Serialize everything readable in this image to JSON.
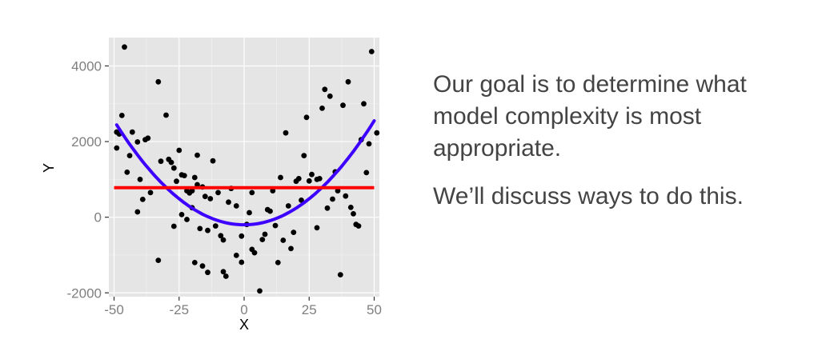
{
  "caption": {
    "para1": "Our goal is to determine what model complexity is most appropriate.",
    "para2": "We’ll discuss ways to do this."
  },
  "chart_data": {
    "type": "scatter",
    "title": "",
    "xlabel": "X",
    "ylabel": "Y",
    "xlim": [
      -52,
      52
    ],
    "ylim": [
      -2100,
      4750
    ],
    "xticks": [
      -50,
      -25,
      0,
      25,
      50
    ],
    "xtick_labels": [
      "-50",
      "-25",
      "0",
      "25",
      "50"
    ],
    "yticks": [
      -2000,
      0,
      2000,
      4000
    ],
    "ytick_labels": [
      "-2000",
      "0",
      "2000",
      "4000"
    ],
    "grid": true,
    "background": "#e5e5e5",
    "points": [
      [
        -46,
        4500
      ],
      [
        -33,
        3580
      ],
      [
        -30,
        2700
      ],
      [
        -48,
        2200
      ],
      [
        -47,
        2690
      ],
      [
        -49,
        2250
      ],
      [
        -43,
        2250
      ],
      [
        -41,
        1990
      ],
      [
        -38,
        2050
      ],
      [
        -37,
        2090
      ],
      [
        -44,
        1630
      ],
      [
        -49,
        1830
      ],
      [
        -45,
        1190
      ],
      [
        -40,
        1000
      ],
      [
        -36,
        650
      ],
      [
        -39,
        470
      ],
      [
        -41,
        140
      ],
      [
        -32,
        1480
      ],
      [
        -28,
        1450
      ],
      [
        -29,
        1530
      ],
      [
        -27,
        1300
      ],
      [
        -25,
        1770
      ],
      [
        -23,
        1100
      ],
      [
        -24,
        1120
      ],
      [
        -22,
        700
      ],
      [
        -21,
        640
      ],
      [
        -20,
        700
      ],
      [
        -19,
        1050
      ],
      [
        -18,
        1640
      ],
      [
        -26,
        950
      ],
      [
        -13,
        490
      ],
      [
        -12,
        1490
      ],
      [
        -10,
        650
      ],
      [
        -15,
        550
      ],
      [
        -16,
        800
      ],
      [
        -18,
        860
      ],
      [
        -27,
        -240
      ],
      [
        -24,
        70
      ],
      [
        -22,
        -60
      ],
      [
        -20,
        250
      ],
      [
        -17,
        -300
      ],
      [
        -14,
        -350
      ],
      [
        -11,
        -230
      ],
      [
        -9,
        -490
      ],
      [
        -8,
        -600
      ],
      [
        -6,
        400
      ],
      [
        -5,
        760
      ],
      [
        -3,
        300
      ],
      [
        -1,
        -500
      ],
      [
        1,
        -190
      ],
      [
        2,
        120
      ],
      [
        3,
        650
      ],
      [
        -33,
        -1140
      ],
      [
        -19,
        -1200
      ],
      [
        -16,
        -1290
      ],
      [
        -14,
        -1460
      ],
      [
        -8,
        -1440
      ],
      [
        -7,
        -1560
      ],
      [
        -3,
        -1010
      ],
      [
        -1,
        -1190
      ],
      [
        3,
        -850
      ],
      [
        4,
        -940
      ],
      [
        6,
        -1950
      ],
      [
        7,
        -590
      ],
      [
        8,
        -450
      ],
      [
        9,
        200
      ],
      [
        10,
        160
      ],
      [
        11,
        700
      ],
      [
        12,
        -220
      ],
      [
        13,
        -1200
      ],
      [
        15,
        -610
      ],
      [
        16,
        2230
      ],
      [
        17,
        300
      ],
      [
        18,
        -830
      ],
      [
        19,
        -400
      ],
      [
        20,
        950
      ],
      [
        21,
        1020
      ],
      [
        22,
        450
      ],
      [
        23,
        1630
      ],
      [
        24,
        2640
      ],
      [
        25,
        960
      ],
      [
        26,
        1130
      ],
      [
        28,
        1000
      ],
      [
        28,
        -280
      ],
      [
        29,
        1020
      ],
      [
        30,
        2880
      ],
      [
        31,
        3380
      ],
      [
        33,
        3200
      ],
      [
        35,
        1200
      ],
      [
        36,
        700
      ],
      [
        37,
        -1520
      ],
      [
        38,
        2960
      ],
      [
        39,
        560
      ],
      [
        40,
        3580
      ],
      [
        41,
        260
      ],
      [
        42,
        90
      ],
      [
        43,
        -190
      ],
      [
        44,
        -230
      ],
      [
        45,
        2050
      ],
      [
        46,
        3000
      ],
      [
        47,
        1180
      ],
      [
        48,
        1940
      ],
      [
        49,
        4380
      ],
      [
        51,
        2230
      ],
      [
        34,
        480
      ],
      [
        14,
        1050
      ],
      [
        32,
        240
      ]
    ],
    "series": [
      {
        "type": "curve",
        "color": "#3d00ff",
        "coef": [
          -200,
          0,
          1.1
        ],
        "domain": [
          -49,
          50
        ]
      },
      {
        "type": "constant",
        "color": "#ff0000",
        "value": 780,
        "domain": [
          -50,
          50
        ]
      }
    ]
  }
}
